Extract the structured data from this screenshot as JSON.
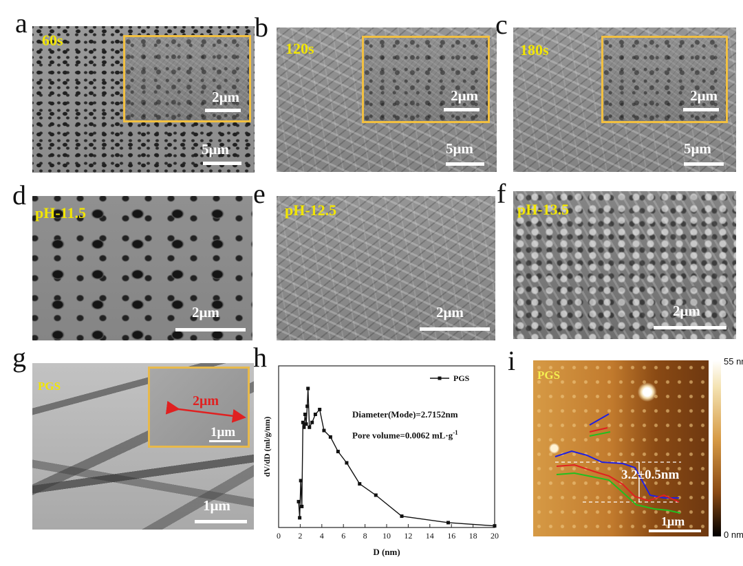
{
  "panels": {
    "a": {
      "letter": "a",
      "label": "60s",
      "scale_main": "5μm",
      "scale_inset": "2μm"
    },
    "b": {
      "letter": "b",
      "label": "120s",
      "scale_main": "5μm",
      "scale_inset": "2μm"
    },
    "c": {
      "letter": "c",
      "label": "180s",
      "scale_main": "5μm",
      "scale_inset": "2μm"
    },
    "d": {
      "letter": "d",
      "label": "pH-11.5",
      "scale": "2μm"
    },
    "e": {
      "letter": "e",
      "label": "pH-12.5",
      "scale": "2μm"
    },
    "f": {
      "letter": "f",
      "label": "pH-13.5",
      "scale": "2μm"
    },
    "g": {
      "letter": "g",
      "label": "PGS",
      "scale_main": "1μm",
      "scale_inset": "1μm",
      "inset_measure": "2μm"
    },
    "h": {
      "letter": "h"
    },
    "i": {
      "letter": "i",
      "label": "PGS",
      "scale": "1μm",
      "height_annotation": "3.2±0.5nm",
      "colorbar_max": "55 nm",
      "colorbar_min": "0 nm"
    }
  },
  "chart_data": {
    "type": "line",
    "title": "",
    "xlabel": "D (nm)",
    "ylabel": "dV/dD (ml/g/nm)",
    "xlim": [
      0,
      20
    ],
    "xticks": [
      "0",
      "2",
      "4",
      "6",
      "8",
      "10",
      "12",
      "14",
      "16",
      "18",
      "20"
    ],
    "ylim": [
      0,
      1
    ],
    "legend": "top-right",
    "series": [
      {
        "name": "PGS",
        "x": [
          1.85,
          1.95,
          2.05,
          2.15,
          2.25,
          2.35,
          2.45,
          2.55,
          2.65,
          2.72,
          2.85,
          3.1,
          3.4,
          3.8,
          4.2,
          4.8,
          5.5,
          6.3,
          7.5,
          9.0,
          11.4,
          15.7,
          20.0
        ],
        "values": [
          0.16,
          0.06,
          0.29,
          0.13,
          0.65,
          0.62,
          0.7,
          0.64,
          0.75,
          0.86,
          0.62,
          0.65,
          0.7,
          0.73,
          0.6,
          0.56,
          0.47,
          0.4,
          0.27,
          0.2,
          0.07,
          0.03,
          0.01
        ]
      }
    ],
    "annotations": [
      "Diameter(Mode)=2.7152nm",
      "Pore volume=0.0062 mL·g",
      "-1"
    ],
    "grid": false
  }
}
